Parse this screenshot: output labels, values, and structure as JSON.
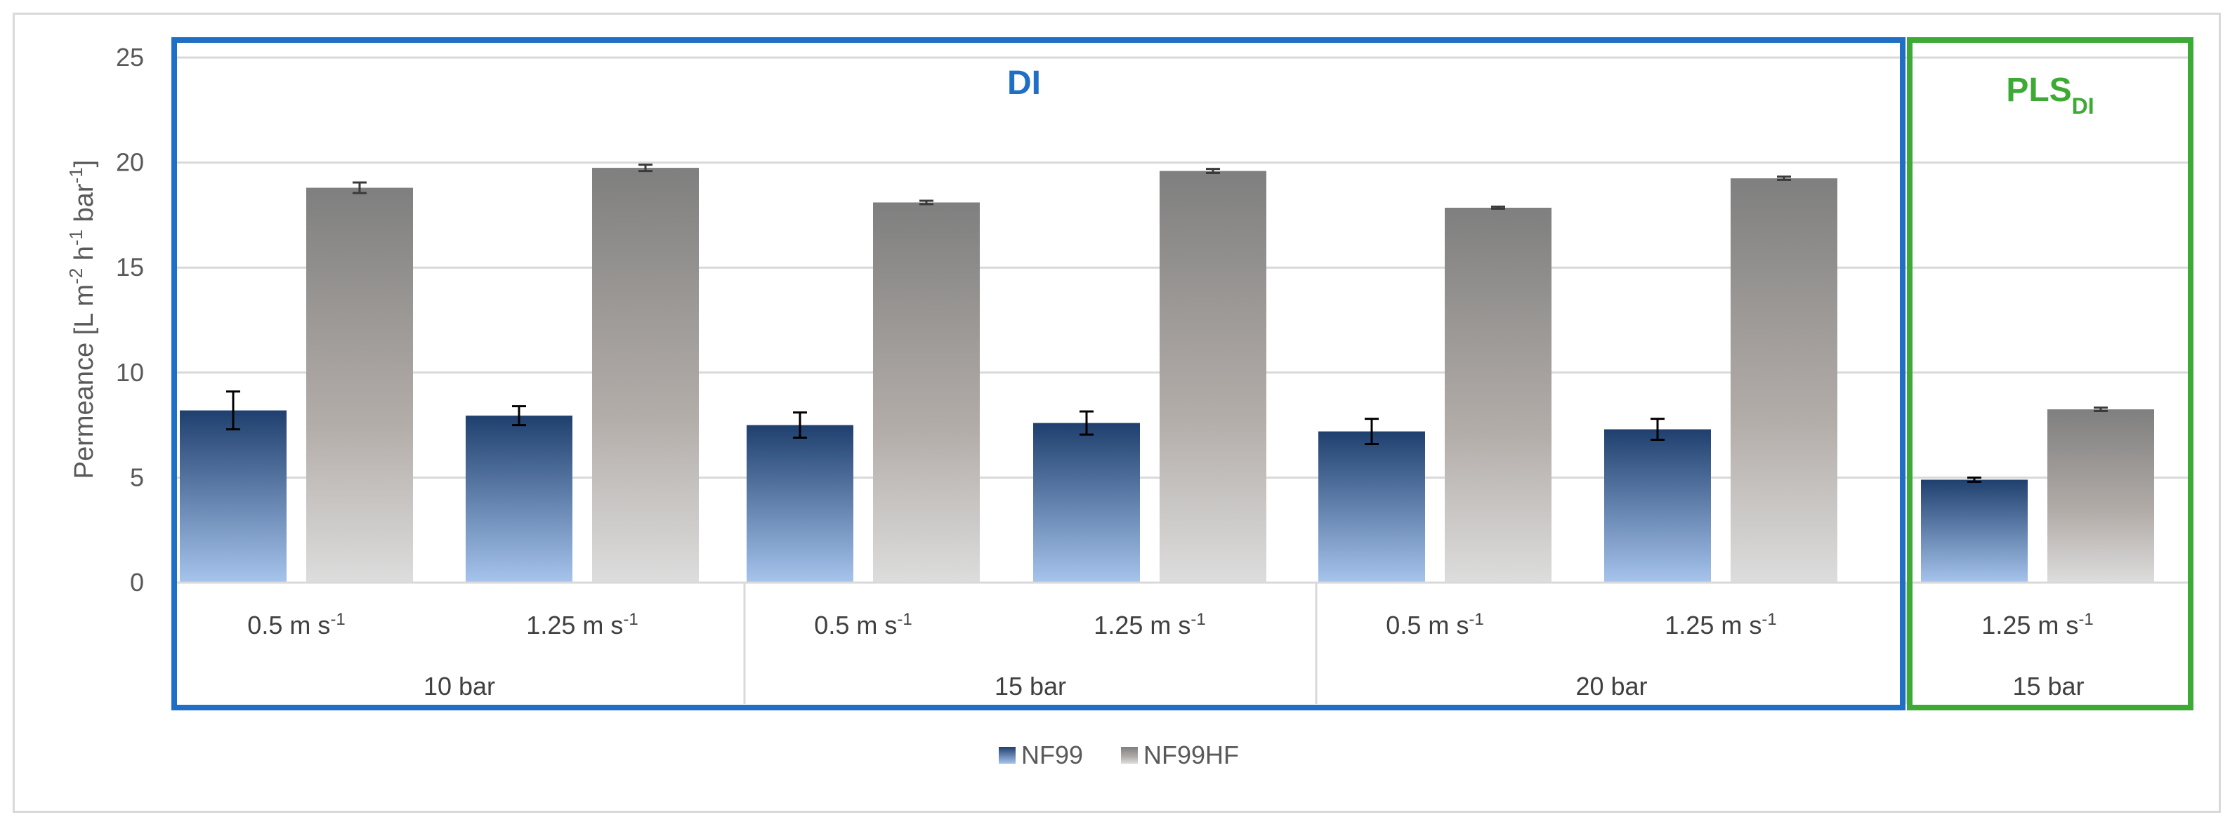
{
  "chart_data": {
    "type": "bar",
    "ylabel": "Permeance [L m⁻² h⁻¹ bar⁻¹]",
    "ylabel_parts": [
      {
        "t": "Permeance [L m",
        "sup": false
      },
      {
        "t": "-2",
        "sup": true
      },
      {
        "t": " h",
        "sup": false
      },
      {
        "t": "-1",
        "sup": true
      },
      {
        "t": " bar",
        "sup": false
      },
      {
        "t": "-1",
        "sup": true
      },
      {
        "t": "]",
        "sup": false
      }
    ],
    "ylim": [
      0,
      25
    ],
    "yticks": [
      "0",
      "5",
      "10",
      "15",
      "20",
      "25"
    ],
    "grid": true,
    "legend_position": "bottom",
    "categories": [
      {
        "label": "0.5 m s",
        "unit_sup": "-1",
        "group": "10 bar"
      },
      {
        "label": "1.25 m s",
        "unit_sup": "-1",
        "group": "10 bar"
      },
      {
        "label": "0.5 m s",
        "unit_sup": "-1",
        "group": "15 bar"
      },
      {
        "label": "1.25 m s",
        "unit_sup": "-1",
        "group": "15 bar"
      },
      {
        "label": "0.5 m s",
        "unit_sup": "-1",
        "group": "20 bar"
      },
      {
        "label": "1.25 m s",
        "unit_sup": "-1",
        "group": "20 bar"
      },
      {
        "label": "1.25 m s",
        "unit_sup": "-1",
        "group": "15 bar"
      }
    ],
    "groups": [
      "10 bar",
      "15 bar",
      "20 bar",
      "15 bar"
    ],
    "series": [
      {
        "name": "NF99",
        "values": [
          8.2,
          7.95,
          7.5,
          7.6,
          7.2,
          7.3,
          4.9
        ],
        "errors": [
          0.9,
          0.45,
          0.6,
          0.55,
          0.6,
          0.5,
          0.1
        ]
      },
      {
        "name": "NF99HF",
        "values": [
          18.8,
          19.75,
          18.1,
          19.6,
          17.85,
          19.25,
          8.25
        ],
        "errors": [
          0.25,
          0.15,
          0.08,
          0.1,
          0.05,
          0.08,
          0.08
        ]
      }
    ],
    "annotations": [
      {
        "text": "DI",
        "sub": "",
        "color": "#1f6fc6"
      },
      {
        "text": "PLS",
        "sub": "DI",
        "color": "#3daa35"
      }
    ],
    "colors": {
      "nf99_top": "#1f3f6e",
      "nf99_bottom": "#a6c4ec",
      "nf99hf_top": "#7f7f7f",
      "nf99hf_bottom": "#dddddd",
      "di_box": "#1f6fc6",
      "pls_box": "#3daa35"
    }
  }
}
